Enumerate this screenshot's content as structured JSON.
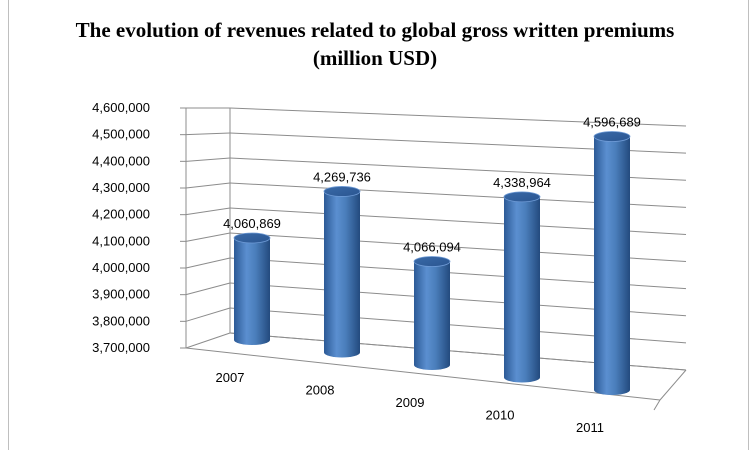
{
  "chart_data": {
    "type": "bar",
    "title": "The evolution of revenues related to global gross written premiums (million USD)",
    "categories": [
      "2007",
      "2008",
      "2009",
      "2010",
      "2011"
    ],
    "values": [
      4060869,
      4269736,
      4066094,
      4338964,
      4596689
    ],
    "data_labels": [
      "4,060,869",
      "4,269,736",
      "4,066,094",
      "4,338,964",
      "4,596,689"
    ],
    "ylim": [
      3700000,
      4600000
    ],
    "yticks": [
      "3,700,000",
      "3,800,000",
      "3,900,000",
      "4,000,000",
      "4,100,000",
      "4,200,000",
      "4,300,000",
      "4,400,000",
      "4,500,000",
      "4,600,000"
    ],
    "xlabel": "",
    "ylabel": "",
    "grid": true,
    "style": "3d-cylinder",
    "bar_color": "#4a7ebb"
  }
}
